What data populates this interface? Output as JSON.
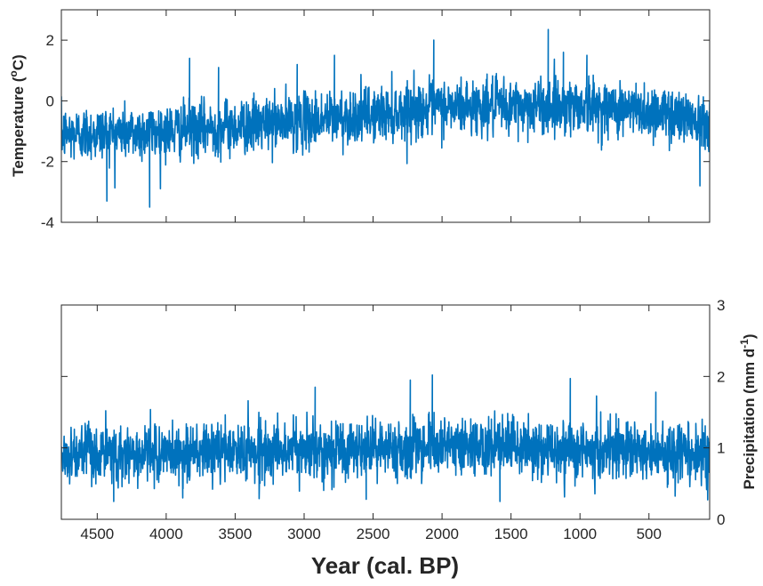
{
  "chart_data": [
    {
      "type": "line",
      "title": "",
      "xlabel": "",
      "ylabel": "Temperature (",
      "ylabel_sup": "o",
      "ylabel_suffix": "C)",
      "ylabel_side": "left",
      "xlim": [
        4760,
        60
      ],
      "x_reversed": true,
      "ylim": [
        -4,
        3
      ],
      "yticks": [
        -4,
        -2,
        0,
        2
      ],
      "ytick_labels": [
        "-4",
        "-2",
        "0",
        "2"
      ],
      "xticks": [
        4500,
        4000,
        3500,
        3000,
        2500,
        2000,
        1500,
        1000,
        500
      ],
      "x_tick_labels_shown": false,
      "color": "#0072BD",
      "grid": false,
      "trend": {
        "x": [
          4760,
          4000,
          3500,
          3000,
          2500,
          2000,
          1500,
          1000,
          500,
          60
        ],
        "y": [
          -1.1,
          -1.0,
          -0.85,
          -0.65,
          -0.45,
          -0.2,
          -0.2,
          -0.15,
          -0.35,
          -0.6
        ]
      },
      "noise_sd": 0.45,
      "peaks": [
        {
          "x": 4430,
          "y": -3.3
        },
        {
          "x": 4120,
          "y": -3.5
        },
        {
          "x": 3830,
          "y": 1.4
        },
        {
          "x": 3620,
          "y": 1.1
        },
        {
          "x": 3050,
          "y": 1.2
        },
        {
          "x": 2780,
          "y": 1.5
        },
        {
          "x": 2060,
          "y": 2.0
        },
        {
          "x": 1230,
          "y": 2.35
        },
        {
          "x": 1120,
          "y": 1.6
        },
        {
          "x": 950,
          "y": 1.5
        },
        {
          "x": 130,
          "y": -2.8
        }
      ]
    },
    {
      "type": "line",
      "title": "",
      "xlabel": "Year (cal. BP)",
      "ylabel": "Precipitation (mm d",
      "ylabel_sup": "-1",
      "ylabel_suffix": ")",
      "ylabel_side": "right",
      "xlim": [
        4760,
        60
      ],
      "x_reversed": true,
      "ylim": [
        0,
        3
      ],
      "yticks": [
        0,
        1,
        2,
        3
      ],
      "ytick_labels": [
        "0",
        "1",
        "2",
        "3"
      ],
      "xticks": [
        4500,
        4000,
        3500,
        3000,
        2500,
        2000,
        1500,
        1000,
        500
      ],
      "xtick_labels": [
        "4500",
        "4000",
        "3500",
        "3000",
        "2500",
        "2000",
        "1500",
        "1000",
        "500"
      ],
      "color": "#0072BD",
      "grid": false,
      "trend": {
        "x": [
          4760,
          4000,
          3500,
          3000,
          2500,
          2000,
          1500,
          1000,
          500,
          60
        ],
        "y": [
          0.9,
          0.92,
          0.95,
          0.97,
          1.0,
          1.02,
          1.0,
          0.98,
          0.95,
          0.92
        ]
      },
      "noise_sd": 0.2,
      "peaks": [
        {
          "x": 4380,
          "y": 0.25
        },
        {
          "x": 3880,
          "y": 0.3
        },
        {
          "x": 2920,
          "y": 1.85
        },
        {
          "x": 2230,
          "y": 1.95
        },
        {
          "x": 2070,
          "y": 2.02
        },
        {
          "x": 1070,
          "y": 1.97
        },
        {
          "x": 450,
          "y": 1.78
        },
        {
          "x": 2550,
          "y": 0.28
        },
        {
          "x": 1580,
          "y": 0.25
        }
      ]
    }
  ]
}
